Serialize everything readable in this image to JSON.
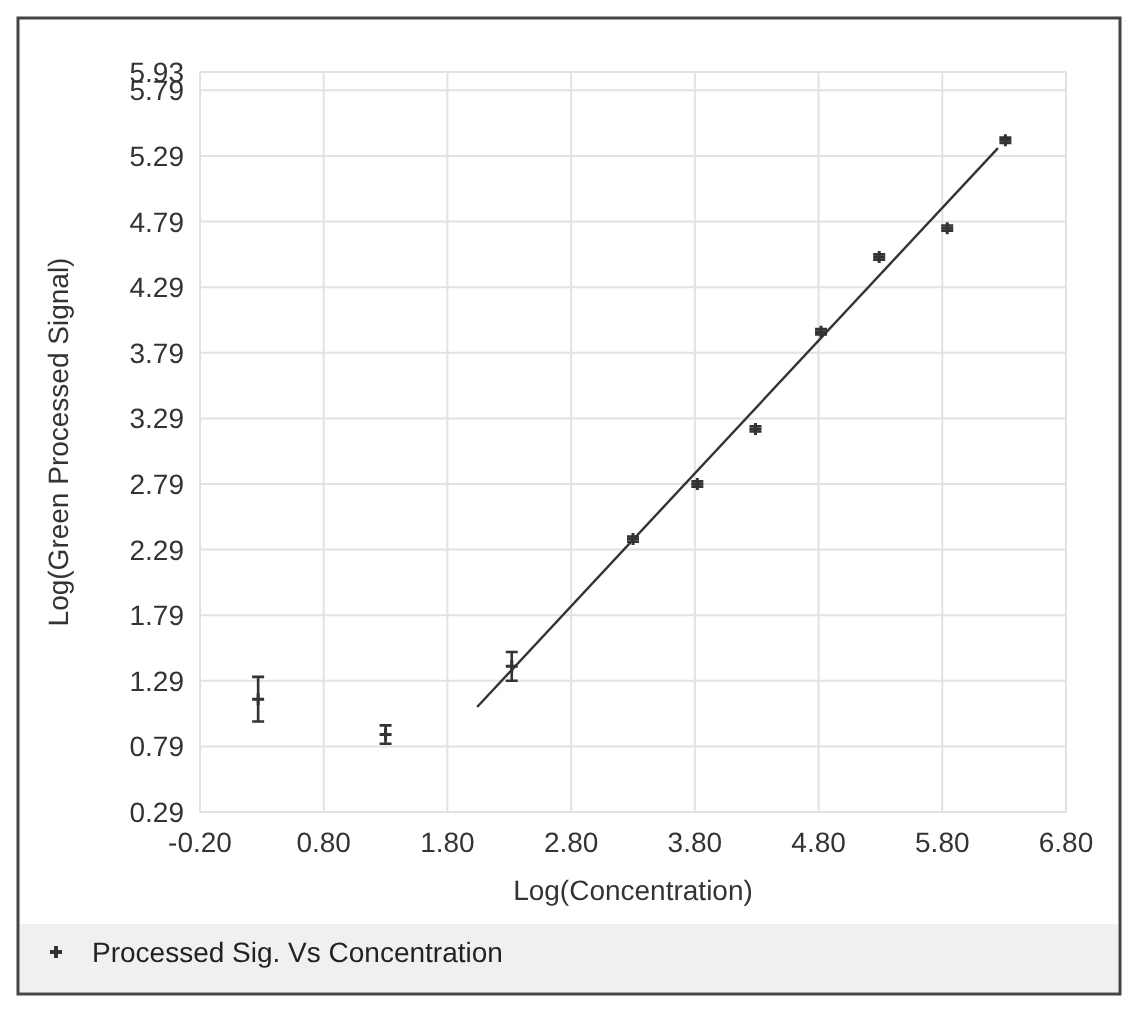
{
  "chart_data": {
    "type": "scatter",
    "xlabel": "Log(Concentration)",
    "ylabel": "Log(Green Processed Signal)",
    "xlim": [
      -0.2,
      6.8
    ],
    "ylim": [
      0.29,
      5.93
    ],
    "xticks": [
      {
        "value": -0.2,
        "label": "-0.20"
      },
      {
        "value": 0.8,
        "label": "0.80"
      },
      {
        "value": 1.8,
        "label": "1.80"
      },
      {
        "value": 2.8,
        "label": "2.80"
      },
      {
        "value": 3.8,
        "label": "3.80"
      },
      {
        "value": 4.8,
        "label": "4.80"
      },
      {
        "value": 5.8,
        "label": "5.80"
      },
      {
        "value": 6.8,
        "label": "6.80"
      }
    ],
    "yticks": [
      0.29,
      0.79,
      1.29,
      1.79,
      2.29,
      2.79,
      3.29,
      3.79,
      4.29,
      4.79,
      5.29,
      5.79,
      5.93
    ],
    "grid": true,
    "legend": "bottom",
    "series": [
      {
        "name": "Processed Sig. Vs Concentration",
        "color": "#333333",
        "marker": "cross",
        "x": [
          0.27,
          1.3,
          2.32,
          3.3,
          3.82,
          4.29,
          4.82,
          5.29,
          5.84,
          6.31
        ],
        "values": [
          1.15,
          0.88,
          1.4,
          2.37,
          2.79,
          3.21,
          3.95,
          4.52,
          4.74,
          5.41
        ],
        "errors": [
          0.17,
          0.07,
          0.11,
          0.02,
          0.02,
          0.02,
          0.02,
          0.02,
          0.02,
          0.02
        ]
      },
      {
        "type": "line",
        "color": "#333333",
        "x": [
          2.04,
          6.25
        ],
        "values": [
          1.09,
          5.35
        ],
        "line_style": "solid"
      }
    ]
  }
}
